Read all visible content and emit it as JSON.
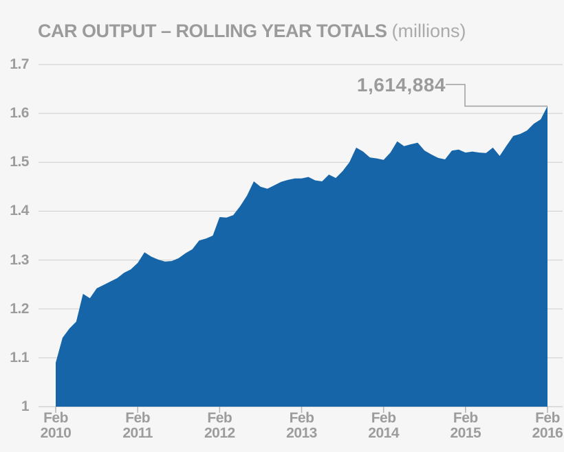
{
  "page": {
    "background_color": "#f5f6f5"
  },
  "header": {
    "title": "CAR OUTPUT – ROLLING YEAR TOTALS",
    "subtitle": "(millions)"
  },
  "chart_data": {
    "type": "area",
    "title": "CAR OUTPUT – ROLLING YEAR TOTALS (millions)",
    "unit": "millions",
    "x_interval": "monthly",
    "x_start": "Feb 2010",
    "x_end": "Feb 2016",
    "x_tick_labels": [
      {
        "month": "Feb",
        "year": "2010"
      },
      {
        "month": "Feb",
        "year": "2011"
      },
      {
        "month": "Feb",
        "year": "2012"
      },
      {
        "month": "Feb",
        "year": "2013"
      },
      {
        "month": "Feb",
        "year": "2014"
      },
      {
        "month": "Feb",
        "year": "2015"
      },
      {
        "month": "Feb",
        "year": "2016"
      }
    ],
    "y_tick_labels": [
      "1.7",
      "1.6",
      "1.5",
      "1.4",
      "1.3",
      "1.2",
      "1.1",
      "1"
    ],
    "ylim": [
      1.0,
      1.7
    ],
    "grid": true,
    "legend": "none",
    "values": [
      1.09,
      1.141,
      1.16,
      1.174,
      1.231,
      1.222,
      1.242,
      1.249,
      1.256,
      1.263,
      1.274,
      1.281,
      1.294,
      1.316,
      1.307,
      1.301,
      1.297,
      1.298,
      1.304,
      1.314,
      1.322,
      1.34,
      1.344,
      1.35,
      1.388,
      1.387,
      1.392,
      1.41,
      1.432,
      1.461,
      1.45,
      1.446,
      1.453,
      1.46,
      1.464,
      1.467,
      1.467,
      1.47,
      1.463,
      1.461,
      1.475,
      1.468,
      1.482,
      1.5,
      1.53,
      1.522,
      1.51,
      1.508,
      1.505,
      1.52,
      1.543,
      1.533,
      1.537,
      1.54,
      1.524,
      1.516,
      1.509,
      1.506,
      1.524,
      1.526,
      1.52,
      1.522,
      1.52,
      1.519,
      1.53,
      1.513,
      1.534,
      1.554,
      1.558,
      1.565,
      1.579,
      1.588,
      1.615
    ],
    "annotation": {
      "label": "1,614,884",
      "applies_to": "Feb 2016"
    },
    "colors": {
      "area": "#1665a8",
      "grid": "#cdcdcd",
      "baseline": "#c2c2c2",
      "tick": "#b3b3b3",
      "callout_line": "#9e9e9e",
      "text": "#9b9b9b"
    }
  }
}
